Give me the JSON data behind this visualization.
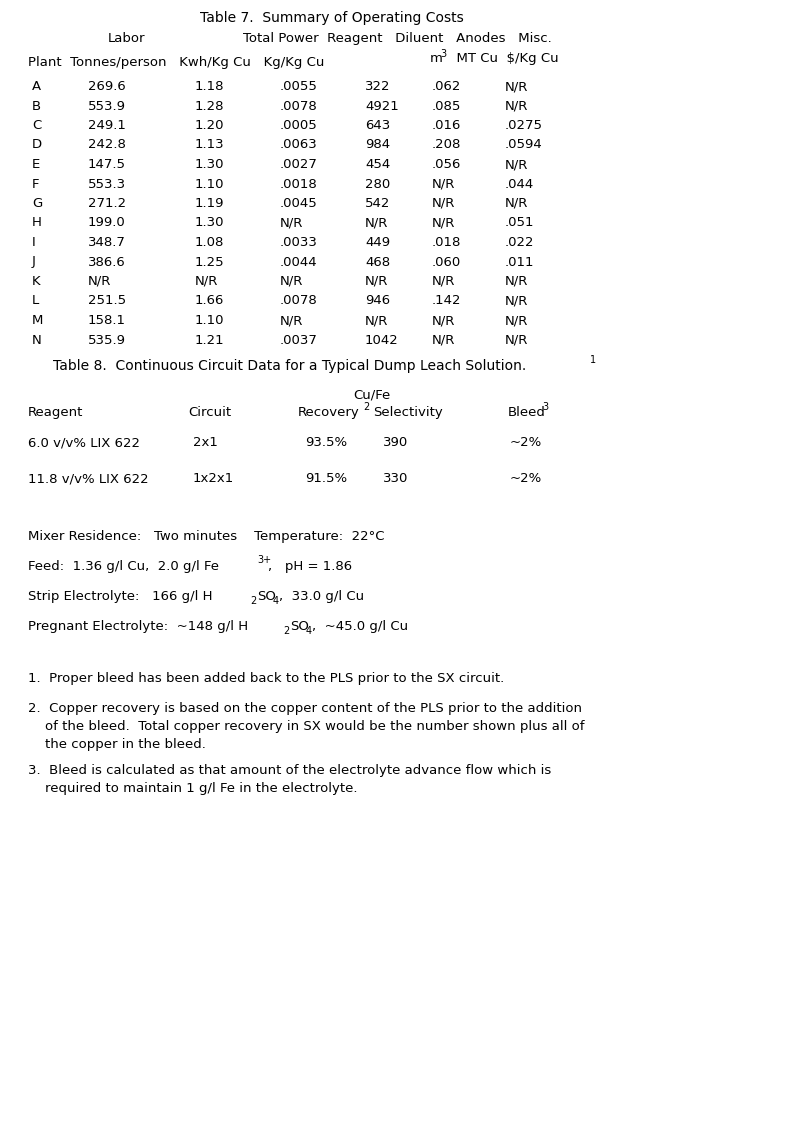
{
  "title7": "Table 7.  Summary of Operating Costs",
  "table7_data": [
    [
      "A",
      "269.6",
      "1.18",
      ".0055",
      "322",
      ".062",
      "N/R"
    ],
    [
      "B",
      "553.9",
      "1.28",
      ".0078",
      "4921",
      ".085",
      "N/R"
    ],
    [
      "C",
      "249.1",
      "1.20",
      ".0005",
      "643",
      ".016",
      ".0275"
    ],
    [
      "D",
      "242.8",
      "1.13",
      ".0063",
      "984",
      ".208",
      ".0594"
    ],
    [
      "E",
      "147.5",
      "1.30",
      ".0027",
      "454",
      ".056",
      "N/R"
    ],
    [
      "F",
      "553.3",
      "1.10",
      ".0018",
      "280",
      "N/R",
      ".044"
    ],
    [
      "G",
      "271.2",
      "1.19",
      ".0045",
      "542",
      "N/R",
      "N/R"
    ],
    [
      "H",
      "199.0",
      "1.30",
      "N/R",
      "N/R",
      "N/R",
      ".051"
    ],
    [
      "I",
      "348.7",
      "1.08",
      ".0033",
      "449",
      ".018",
      ".022"
    ],
    [
      "J",
      "386.6",
      "1.25",
      ".0044",
      "468",
      ".060",
      ".011"
    ],
    [
      "K",
      "N/R",
      "N/R",
      "N/R",
      "N/R",
      "N/R",
      "N/R"
    ],
    [
      "L",
      "251.5",
      "1.66",
      ".0078",
      "946",
      ".142",
      "N/R"
    ],
    [
      "M",
      "158.1",
      "1.10",
      "N/R",
      "N/R",
      "N/R",
      "N/R"
    ],
    [
      "N",
      "535.9",
      "1.21",
      ".0037",
      "1042",
      "N/R",
      "N/R"
    ]
  ],
  "title8": "Table 8.  Continuous Circuit Data for a Typical Dump Leach Solution.",
  "t8_data": [
    [
      "6.0 v/v% LIX 622",
      "2x1",
      "93.5%",
      "390",
      "~2%"
    ],
    [
      "11.8 v/v% LIX 622",
      "1x2x1",
      "91.5%",
      "330",
      "~2%"
    ]
  ],
  "bg_color": "#ffffff",
  "text_color": "#000000",
  "font_size": 9.5,
  "font_size_small": 7.0,
  "font_size_title": 10.0
}
